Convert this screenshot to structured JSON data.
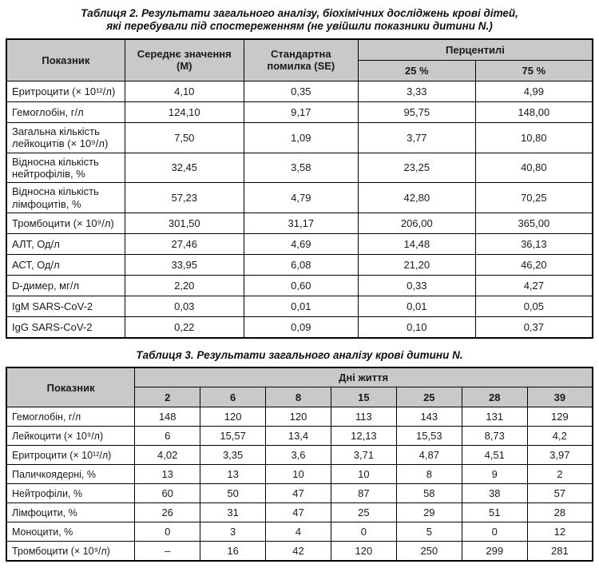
{
  "colors": {
    "header_bg": "#c9c9c9",
    "border": "#000000",
    "text": "#1a1a1a",
    "page_bg": "#ffffff"
  },
  "table2": {
    "caption_line1": "Таблиця 2. Результати загального аналізу, біохімічних досліджень крові дітей,",
    "caption_line2": "які перебували під спостереженням (не увійшли показники дитини N.)",
    "header": {
      "indicator": "Показник",
      "mean": "Середнє значення (М)",
      "se": "Стандартна помилка (SE)",
      "percentiles": "Перцентилі",
      "p25": "25 %",
      "p75": "75 %"
    },
    "rows": [
      {
        "name": "Еритроцити (× 10¹²/л)",
        "values": [
          "4,10",
          "0,35",
          "3,33",
          "4,99"
        ]
      },
      {
        "name": "Гемоглобін, г/л",
        "values": [
          "124,10",
          "9,17",
          "95,75",
          "148,00"
        ]
      },
      {
        "name": "Загальна кількість лейкоцитів (× 10⁹/л)",
        "values": [
          "7,50",
          "1,09",
          "3,77",
          "10,80"
        ]
      },
      {
        "name": "Відносна кількість нейтрофілів, %",
        "values": [
          "32,45",
          "3,58",
          "23,25",
          "40,80"
        ]
      },
      {
        "name": "Відносна кількість лімфоцитів, %",
        "values": [
          "57,23",
          "4,79",
          "42,80",
          "70,25"
        ]
      },
      {
        "name": "Тромбоцити (× 10⁹/л)",
        "values": [
          "301,50",
          "31,17",
          "206,00",
          "365,00"
        ]
      },
      {
        "name": "АЛТ, Од/л",
        "values": [
          "27,46",
          "4,69",
          "14,48",
          "36,13"
        ]
      },
      {
        "name": "АСТ, Од/л",
        "values": [
          "33,95",
          "6,08",
          "21,20",
          "46,20"
        ]
      },
      {
        "name": "D-димер, мг/л",
        "values": [
          "2,20",
          "0,60",
          "0,33",
          "4,27"
        ]
      },
      {
        "name": "IgM SARS-CoV-2",
        "values": [
          "0,03",
          "0,01",
          "0,01",
          "0,05"
        ]
      },
      {
        "name": "IgG SARS-CoV-2",
        "values": [
          "0,22",
          "0,09",
          "0,10",
          "0,37"
        ]
      }
    ]
  },
  "table3": {
    "caption": "Таблиця 3. Результати загального аналізу крові дитини N.",
    "header": {
      "indicator": "Показник",
      "days_group": "Дні життя",
      "days": [
        "2",
        "6",
        "8",
        "15",
        "25",
        "28",
        "39"
      ]
    },
    "rows": [
      {
        "name": "Гемоглобін, г/л",
        "values": [
          "148",
          "120",
          "120",
          "113",
          "143",
          "131",
          "129"
        ]
      },
      {
        "name": "Лейкоцити (× 10⁹/л)",
        "values": [
          "6",
          "15,57",
          "13,4",
          "12,13",
          "15,53",
          "8,73",
          "4,2"
        ]
      },
      {
        "name": "Еритроцити (× 10¹²/л)",
        "values": [
          "4,02",
          "3,35",
          "3,6",
          "3,71",
          "4,87",
          "4,51",
          "3,97"
        ]
      },
      {
        "name": "Паличкоядерні, %",
        "values": [
          "13",
          "13",
          "10",
          "10",
          "8",
          "9",
          "2"
        ]
      },
      {
        "name": "Нейтрофіли, %",
        "values": [
          "60",
          "50",
          "47",
          "87",
          "58",
          "38",
          "57"
        ]
      },
      {
        "name": "Лімфоцити, %",
        "values": [
          "26",
          "31",
          "47",
          "25",
          "29",
          "51",
          "28"
        ]
      },
      {
        "name": "Моноцити, %",
        "values": [
          "0",
          "3",
          "4",
          "0",
          "5",
          "0",
          "12"
        ]
      },
      {
        "name": "Тромбоцити (× 10⁹/л)",
        "values": [
          "–",
          "16",
          "42",
          "120",
          "250",
          "299",
          "281"
        ]
      }
    ]
  }
}
